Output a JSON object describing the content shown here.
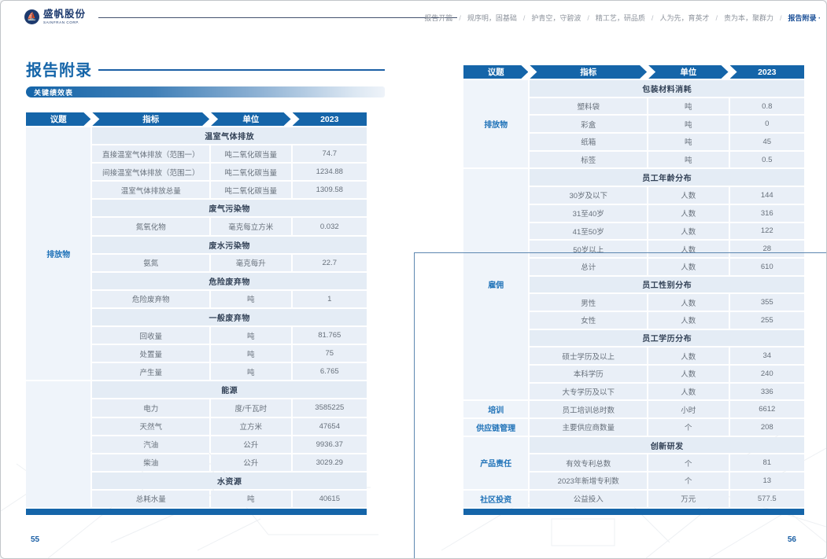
{
  "colors": {
    "primary": "#1565a9",
    "topic_text": "#1f72b8",
    "row_bg": "#e9eff7",
    "section_bg": "#e4ecf5",
    "nav_active": "#1a4f97"
  },
  "brand": {
    "name_cn": "盛帆股份",
    "name_en": "SAINFRAN CORP.",
    "logo_glyph": "⛵"
  },
  "nav": {
    "separator": "/",
    "items": [
      {
        "label": "报告开篇",
        "active": false
      },
      {
        "label": "规序明，固基础",
        "active": false
      },
      {
        "label": "护青空，守碧波",
        "active": false
      },
      {
        "label": "精工艺，研品质",
        "active": false
      },
      {
        "label": "人为先，育英才",
        "active": false
      },
      {
        "label": "责为本，聚群力",
        "active": false
      },
      {
        "label": "报告附录 ·",
        "active": true
      }
    ]
  },
  "page_left": {
    "title": "报告附录",
    "subtitle": "关键绩效表",
    "page_number": "55",
    "table": {
      "headers": [
        "议题",
        "指标",
        "单位",
        "2023"
      ],
      "topics": [
        {
          "label": "排放物",
          "start": 0,
          "span": 14
        },
        {
          "label": "",
          "start": 14,
          "span": 7
        }
      ],
      "rows": [
        {
          "type": "section",
          "label": "温室气体排放"
        },
        {
          "type": "data",
          "indicator": "直接温室气体排放（范围一）",
          "unit": "吨二氧化碳当量",
          "value": "74.7"
        },
        {
          "type": "data",
          "indicator": "间接温室气体排放（范围二）",
          "unit": "吨二氧化碳当量",
          "value": "1234.88"
        },
        {
          "type": "data",
          "indicator": "温室气体排放总量",
          "unit": "吨二氧化碳当量",
          "value": "1309.58"
        },
        {
          "type": "section",
          "label": "废气污染物"
        },
        {
          "type": "data",
          "indicator": "氮氧化物",
          "unit": "毫克每立方米",
          "value": "0.032"
        },
        {
          "type": "section",
          "label": "废水污染物"
        },
        {
          "type": "data",
          "indicator": "氨氮",
          "unit": "毫克每升",
          "value": "22.7"
        },
        {
          "type": "section",
          "label": "危险废弃物"
        },
        {
          "type": "data",
          "indicator": "危险废弃物",
          "unit": "吨",
          "value": "1"
        },
        {
          "type": "section",
          "label": "一般废弃物"
        },
        {
          "type": "data",
          "indicator": "回收量",
          "unit": "吨",
          "value": "81.765"
        },
        {
          "type": "data",
          "indicator": "处置量",
          "unit": "吨",
          "value": "75"
        },
        {
          "type": "data",
          "indicator": "产生量",
          "unit": "吨",
          "value": "6.765"
        },
        {
          "type": "section",
          "label": "能源"
        },
        {
          "type": "data",
          "indicator": "电力",
          "unit": "度/千瓦时",
          "value": "3585225"
        },
        {
          "type": "data",
          "indicator": "天然气",
          "unit": "立方米",
          "value": "47654"
        },
        {
          "type": "data",
          "indicator": "汽油",
          "unit": "公升",
          "value": "9936.37"
        },
        {
          "type": "data",
          "indicator": "柴油",
          "unit": "公升",
          "value": "3029.29"
        },
        {
          "type": "section",
          "label": "水资源"
        },
        {
          "type": "data",
          "indicator": "总耗水量",
          "unit": "吨",
          "value": "40615"
        }
      ]
    }
  },
  "page_right": {
    "page_number": "56",
    "table": {
      "headers": [
        "议题",
        "指标",
        "单位",
        "2023"
      ],
      "topics": [
        {
          "label": "排放物",
          "start": 0,
          "span": 5
        },
        {
          "label": "雇佣",
          "start": 5,
          "span": 13
        },
        {
          "label": "培训",
          "start": 18,
          "span": 1
        },
        {
          "label": "供应链管理",
          "start": 19,
          "span": 1
        },
        {
          "label": "产品责任",
          "start": 20,
          "span": 3
        },
        {
          "label": "社区投资",
          "start": 23,
          "span": 1
        }
      ],
      "rows": [
        {
          "type": "section",
          "label": "包装材料消耗"
        },
        {
          "type": "data",
          "indicator": "塑料袋",
          "unit": "吨",
          "value": "0.8"
        },
        {
          "type": "data",
          "indicator": "彩盒",
          "unit": "吨",
          "value": "0"
        },
        {
          "type": "data",
          "indicator": "纸箱",
          "unit": "吨",
          "value": "45"
        },
        {
          "type": "data",
          "indicator": "标签",
          "unit": "吨",
          "value": "0.5"
        },
        {
          "type": "section",
          "label": "员工年龄分布"
        },
        {
          "type": "data",
          "indicator": "30岁及以下",
          "unit": "人数",
          "value": "144"
        },
        {
          "type": "data",
          "indicator": "31至40岁",
          "unit": "人数",
          "value": "316"
        },
        {
          "type": "data",
          "indicator": "41至50岁",
          "unit": "人数",
          "value": "122"
        },
        {
          "type": "data",
          "indicator": "50岁以上",
          "unit": "人数",
          "value": "28"
        },
        {
          "type": "data",
          "indicator": "总计",
          "unit": "人数",
          "value": "610"
        },
        {
          "type": "section",
          "label": "员工性别分布"
        },
        {
          "type": "data",
          "indicator": "男性",
          "unit": "人数",
          "value": "355"
        },
        {
          "type": "data",
          "indicator": "女性",
          "unit": "人数",
          "value": "255"
        },
        {
          "type": "section",
          "label": "员工学历分布"
        },
        {
          "type": "data",
          "indicator": "硕士学历及以上",
          "unit": "人数",
          "value": "34"
        },
        {
          "type": "data",
          "indicator": "本科学历",
          "unit": "人数",
          "value": "240"
        },
        {
          "type": "data",
          "indicator": "大专学历及以下",
          "unit": "人数",
          "value": "336"
        },
        {
          "type": "data",
          "indicator": "员工培训总时数",
          "unit": "小时",
          "value": "6612"
        },
        {
          "type": "data",
          "indicator": "主要供应商数量",
          "unit": "个",
          "value": "208"
        },
        {
          "type": "section",
          "label": "创新研发"
        },
        {
          "type": "data",
          "indicator": "有效专利总数",
          "unit": "个",
          "value": "81"
        },
        {
          "type": "data",
          "indicator": "2023年新增专利数",
          "unit": "个",
          "value": "13"
        },
        {
          "type": "data",
          "indicator": "公益投入",
          "unit": "万元",
          "value": "577.5"
        }
      ]
    }
  }
}
